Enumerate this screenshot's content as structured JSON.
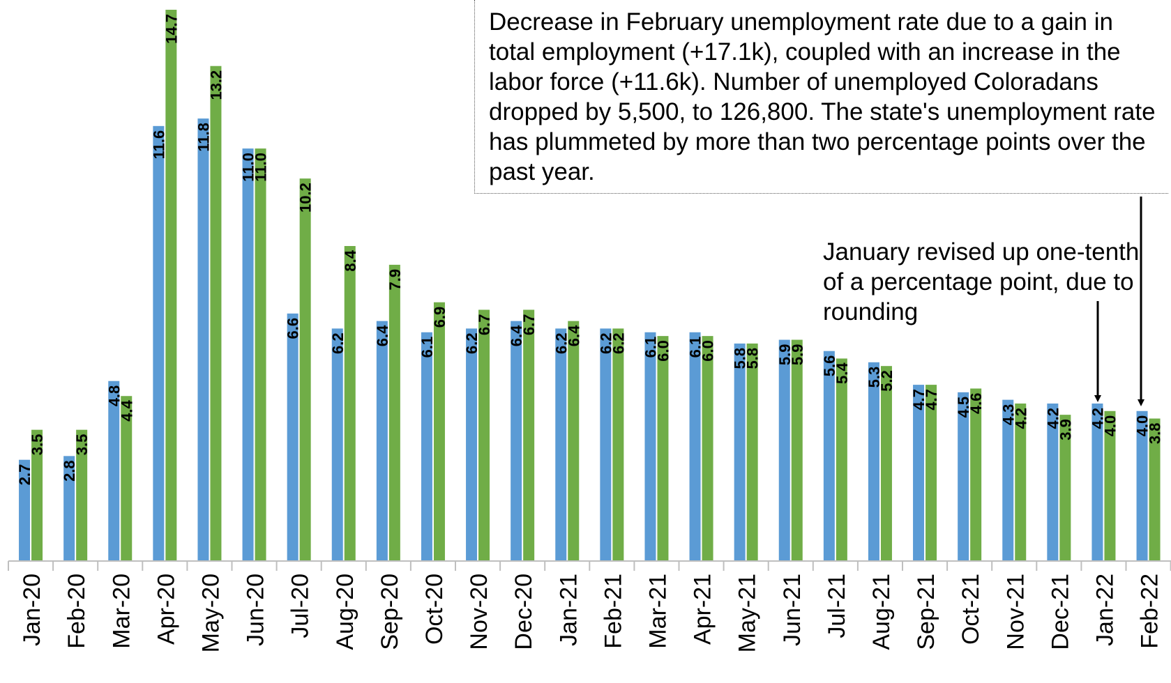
{
  "chart_data": {
    "type": "bar",
    "categories": [
      "Jan-20",
      "Feb-20",
      "Mar-20",
      "Apr-20",
      "May-20",
      "Jun-20",
      "Jul-20",
      "Aug-20",
      "Sep-20",
      "Oct-20",
      "Nov-20",
      "Dec-20",
      "Jan-21",
      "Feb-21",
      "Mar-21",
      "Apr-21",
      "May-21",
      "Jun-21",
      "Jul-21",
      "Aug-21",
      "Sep-21",
      "Oct-21",
      "Nov-21",
      "Dec-21",
      "Jan-22",
      "Feb-22"
    ],
    "series": [
      {
        "color": "#5b9bd5",
        "values": [
          2.7,
          2.8,
          4.8,
          11.6,
          11.8,
          11.0,
          6.6,
          6.2,
          6.4,
          6.1,
          6.2,
          6.4,
          6.2,
          6.2,
          6.1,
          6.1,
          5.8,
          5.9,
          5.6,
          5.3,
          4.7,
          4.5,
          4.3,
          4.2,
          4.2,
          4.0
        ],
        "labels": [
          "2.7",
          "2.8",
          "4.8",
          "11.6",
          "11.8",
          "11.0",
          "6.6",
          "6.2",
          "6.4",
          "6.1",
          "6.2",
          "6.4",
          "6.2",
          "6.2",
          "6.1",
          "6.1",
          "5.8",
          "5.9",
          "5.6",
          "5.3",
          "4.7",
          "4.5",
          "4.3",
          "4.2",
          "4.2",
          "4.0"
        ]
      },
      {
        "color": "#70ad47",
        "values": [
          3.5,
          3.5,
          4.4,
          14.7,
          13.2,
          11.0,
          10.2,
          8.4,
          7.9,
          6.9,
          6.7,
          6.7,
          6.4,
          6.2,
          6.0,
          6.0,
          5.8,
          5.9,
          5.4,
          5.2,
          4.7,
          4.6,
          4.2,
          3.9,
          4.0,
          3.8
        ],
        "labels": [
          "3.5",
          "3.5",
          "4.4",
          "14.7",
          "13.2",
          "11.0",
          "10.2",
          "8.4",
          "7.9",
          "6.9",
          "6.7",
          "6.7",
          "6.4",
          "6.2",
          "6.0",
          "6.0",
          "5.8",
          "5.9",
          "5.4",
          "5.2",
          "4.7",
          "4.6",
          "4.2",
          "3.9",
          "4.0",
          "3.8"
        ]
      }
    ],
    "ylim": [
      0,
      14.7
    ],
    "grid": false,
    "annotations": [
      {
        "text": "Decrease in February unemployment rate due to a gain in total employment (+17.1k), coupled with an increase in the labor force (+11.6k). Number of unemployed Coloradans dropped by 5,500, to 126,800. The state's unemployment rate has plummeted by more than two percentage points over the past year.",
        "points_to": "Feb-22"
      },
      {
        "text": "January revised up one-tenth of a percentage point, due to rounding",
        "points_to": "Jan-22"
      }
    ]
  }
}
